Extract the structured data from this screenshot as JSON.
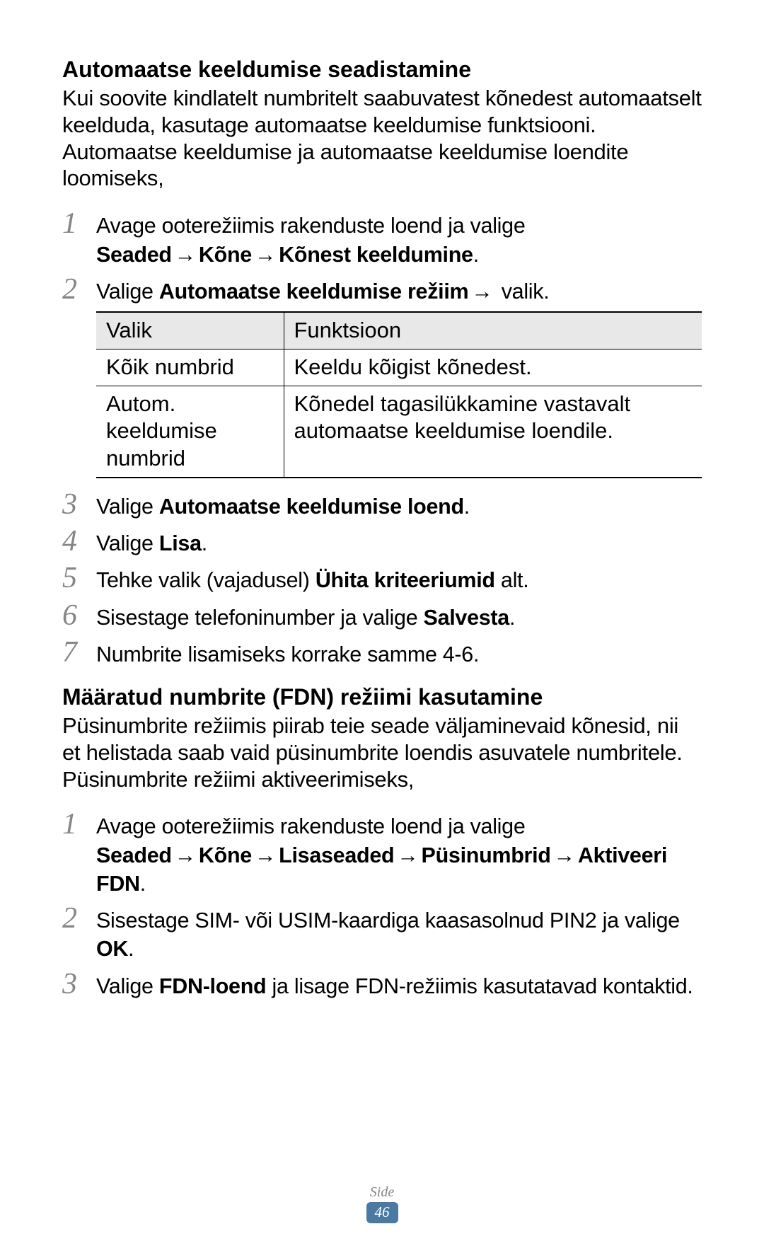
{
  "section1": {
    "heading": "Automaatse keeldumise seadistamine",
    "intro": "Kui soovite kindlatelt numbritelt saabuvatest kõnedest automaatselt keelduda, kasutage automaatse keeldumise funktsiooni. Automaatse keeldumise ja automaatse keeldumise loendite loomiseks,",
    "steps": {
      "s1": {
        "num": "1",
        "pre": "Avage ooterežiimis rakenduste loend ja valige ",
        "b1": "Seaded",
        "b2": "Kõne",
        "b3": "Kõnest keeldumine",
        "post": "."
      },
      "s2": {
        "num": "2",
        "pre": "Valige ",
        "b1": "Automaatse keeldumise režiim",
        "post": " valik."
      },
      "s3": {
        "num": "3",
        "pre": "Valige ",
        "b1": "Automaatse keeldumise loend",
        "post": "."
      },
      "s4": {
        "num": "4",
        "pre": "Valige ",
        "b1": "Lisa",
        "post": "."
      },
      "s5": {
        "num": "5",
        "pre": "Tehke valik (vajadusel) ",
        "b1": "Ühita kriteeriumid",
        "post": " alt."
      },
      "s6": {
        "num": "6",
        "pre": "Sisestage telefoninumber ja valige ",
        "b1": "Salvesta",
        "post": "."
      },
      "s7": {
        "num": "7",
        "text": "Numbrite lisamiseks korrake samme 4-6."
      }
    },
    "table": {
      "h1": "Valik",
      "h2": "Funktsioon",
      "r1c1": "Kõik numbrid",
      "r1c2": "Keeldu kõigist kõnedest.",
      "r2c1": "Autom. keeldumise numbrid",
      "r2c2": "Kõnedel tagasilükkamine vastavalt automaatse keeldumise loendile."
    }
  },
  "section2": {
    "heading": "Määratud numbrite (FDN) režiimi kasutamine",
    "intro": "Püsinumbrite režiimis piirab teie seade väljaminevaid kõnesid, nii et helistada saab vaid püsinumbrite loendis asuvatele numbritele. Püsinumbrite režiimi aktiveerimiseks,",
    "steps": {
      "s1": {
        "num": "1",
        "pre": "Avage ooterežiimis rakenduste loend ja valige ",
        "b1": "Seaded",
        "b2": "Kõne",
        "b3": "Lisaseaded",
        "b4": "Püsinumbrid",
        "b5": "Aktiveeri FDN",
        "post": "."
      },
      "s2": {
        "num": "2",
        "pre": "Sisestage SIM- või USIM-kaardiga kaasasolnud PIN2 ja valige ",
        "b1": "OK",
        "post": "."
      },
      "s3": {
        "num": "3",
        "pre": "Valige ",
        "b1": "FDN-loend",
        "post": " ja lisage FDN-režiimis kasutatavad kontaktid."
      }
    }
  },
  "arrow": "→",
  "footer": {
    "label": "Side",
    "page": "46"
  },
  "colors": {
    "step_num": "#868687",
    "badge_bg": "#4a7aa3",
    "badge_fg": "#ffffff",
    "table_header_bg": "#e8e8e8"
  }
}
